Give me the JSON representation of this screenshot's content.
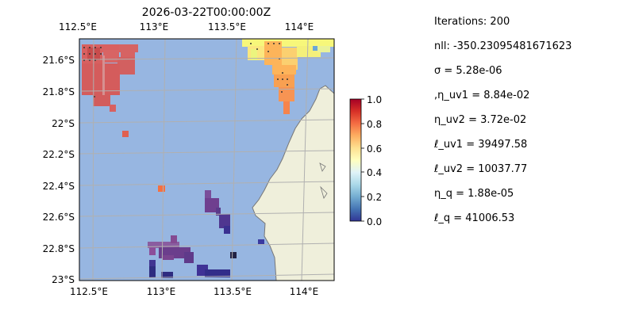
{
  "map": {
    "title": "2026-03-22T00:00:00Z",
    "lon_ticks": [
      "112.5°E",
      "113°E",
      "113.5°E",
      "114°E"
    ],
    "lat_ticks": [
      "21.6°S",
      "21.8°S",
      "22°S",
      "22.2°S",
      "22.4°S",
      "22.6°S",
      "22.8°S",
      "23°S"
    ],
    "ocean_color": "#97b6e1",
    "land_color": "#efefdb",
    "colormap": "RdYlBu_r"
  },
  "colorbar": {
    "ticks": [
      "0.0",
      "0.2",
      "0.4",
      "0.6",
      "0.8",
      "1.0"
    ]
  },
  "params": {
    "iterations": "Iterations: 200",
    "nll": "nll: -350.23095481671623",
    "sigma": "σ = 5.28e-06",
    "eta_uv1": ",η_uv1 = 8.84e-02",
    "eta_uv2": "η_uv2 = 3.72e-02",
    "ell_uv1": "ℓ_uv1 = 39497.58",
    "ell_uv2": "ℓ_uv2 = 10037.77",
    "eta_q": "η_q = 1.88e-05",
    "ell_q": "ℓ_q = 41006.53"
  }
}
